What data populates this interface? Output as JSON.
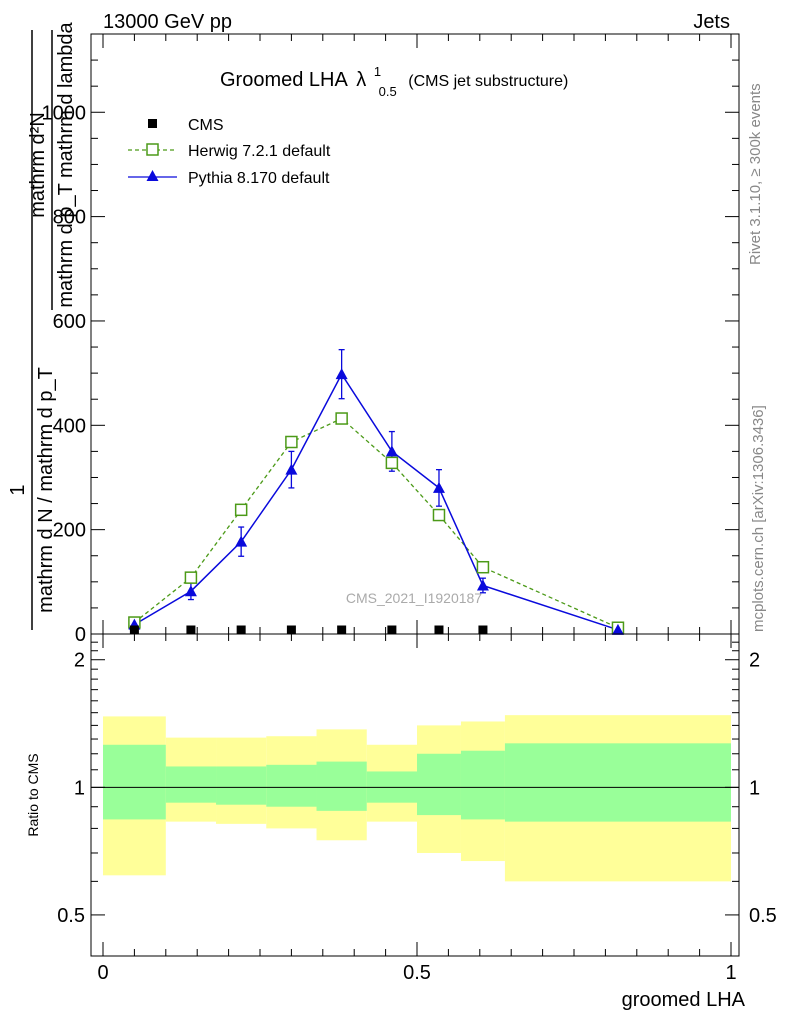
{
  "header": {
    "energy_label": "13000 GeV pp",
    "process_label": "Jets"
  },
  "side_labels": {
    "rivet": "Rivet 3.1.10, ≥ 300k events",
    "mcplots": "mcplots.cern.ch [arXiv:1306.3436]"
  },
  "watermark": "CMS_2021_I1920187",
  "chart_data": [
    {
      "type": "line",
      "panel": "main",
      "title_main": "Groomed LHA",
      "title_symbol": "λ",
      "title_superscript": "1",
      "title_subscript": "0.5",
      "title_suffix": "(CMS jet substructure)",
      "ylabel_numerator": "mathrm d²N",
      "ylabel_denominator": "mathrm d p_T mathrm d lambda",
      "ylabel_prefactor_num": "1",
      "ylabel_prefactor_den": "mathrm d N / mathrm d p_T",
      "ylim": [
        0,
        1150
      ],
      "yticks": [
        0,
        200,
        400,
        600,
        800,
        1000
      ],
      "yticklabels": [
        "0",
        "200",
        "400",
        "600",
        "800",
        "1000"
      ],
      "xlim": [
        -0.02,
        1.0
      ],
      "legend_position": "top-left",
      "series": [
        {
          "name": "CMS",
          "marker": "square-filled",
          "color": "#000000",
          "x": [
            0.05,
            0.14,
            0.22,
            0.3,
            0.38,
            0.46,
            0.535,
            0.605
          ],
          "values": [
            1,
            1,
            1.5,
            2,
            2,
            1.5,
            1,
            1
          ]
        },
        {
          "name": "Herwig 7.2.1 default",
          "marker": "square-open",
          "line": "dashed",
          "color": "#4c9a18",
          "x": [
            0.05,
            0.14,
            0.22,
            0.3,
            0.38,
            0.46,
            0.535,
            0.605,
            0.82
          ],
          "values": [
            22,
            108,
            238,
            368,
            413,
            328,
            228,
            128,
            12
          ]
        },
        {
          "name": "Pythia 8.170 default",
          "marker": "triangle-filled",
          "line": "solid",
          "color": "#0a0adc",
          "x": [
            0.05,
            0.14,
            0.22,
            0.3,
            0.38,
            0.46,
            0.535,
            0.605,
            0.82
          ],
          "values": [
            18,
            82,
            177,
            315,
            498,
            350,
            280,
            93,
            8
          ],
          "errors": [
            6,
            16,
            28,
            35,
            47,
            38,
            35,
            14,
            3
          ]
        }
      ]
    },
    {
      "type": "area",
      "panel": "ratio",
      "ylabel": "Ratio to CMS",
      "xlabel": "groomed LHA",
      "ylim": [
        0.4,
        2.3
      ],
      "yscale": "log",
      "yticks": [
        0.5,
        1,
        2
      ],
      "yticklabels": [
        "0.5",
        "1",
        "2"
      ],
      "xlim": [
        -0.02,
        1.0
      ],
      "xticks": [
        0,
        0.5,
        1
      ],
      "xticklabels": [
        "0",
        "0.5",
        "1"
      ],
      "bins": [
        0.0,
        0.1,
        0.18,
        0.26,
        0.34,
        0.42,
        0.5,
        0.57,
        0.64,
        1.0
      ],
      "band_outer": [
        [
          0.62,
          1.47
        ],
        [
          0.83,
          1.31
        ],
        [
          0.82,
          1.31
        ],
        [
          0.8,
          1.32
        ],
        [
          0.75,
          1.37
        ],
        [
          0.83,
          1.26
        ],
        [
          0.7,
          1.4
        ],
        [
          0.67,
          1.43
        ],
        [
          0.6,
          1.48
        ]
      ],
      "band_inner": [
        [
          0.84,
          1.26
        ],
        [
          0.92,
          1.12
        ],
        [
          0.91,
          1.12
        ],
        [
          0.9,
          1.13
        ],
        [
          0.88,
          1.15
        ],
        [
          0.92,
          1.09
        ],
        [
          0.86,
          1.2
        ],
        [
          0.84,
          1.22
        ],
        [
          0.83,
          1.27
        ]
      ],
      "band_outer_color": "#ffff99",
      "band_inner_color": "#99ff99",
      "reference_value": 1
    }
  ]
}
